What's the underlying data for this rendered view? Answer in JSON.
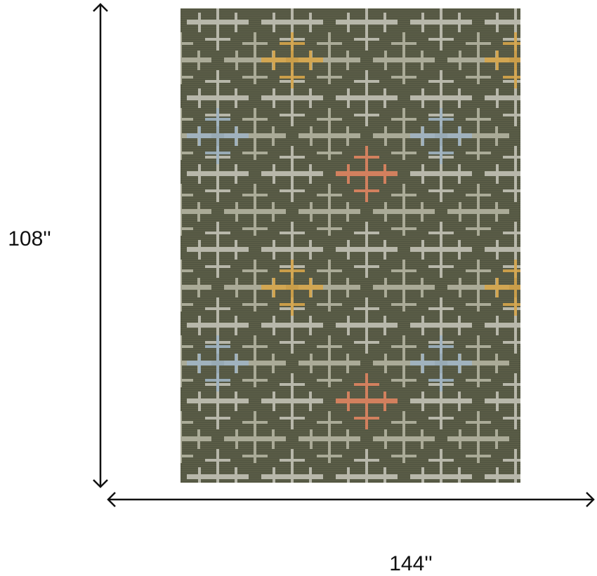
{
  "dimensions": {
    "height": "108''",
    "width": "144''"
  }
}
